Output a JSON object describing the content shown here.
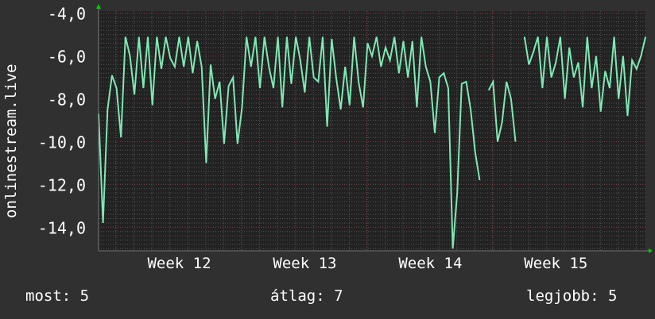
{
  "chart_data": {
    "type": "line",
    "title": "",
    "ylabel": "onlinestream.live",
    "xlabel": "",
    "ylim": [
      -15.1,
      -3.9
    ],
    "y_ticks": [
      "-4,0",
      "-6,0",
      "-8,0",
      "-10,0",
      "-12,0",
      "-14,0"
    ],
    "y_tick_values": [
      -4,
      -6,
      -8,
      -10,
      -12,
      -14
    ],
    "x_ticks": [
      {
        "label": "Week 12",
        "index": 18
      },
      {
        "label": "Week 13",
        "index": 46
      },
      {
        "label": "Week 14",
        "index": 74
      },
      {
        "label": "Week 15",
        "index": 102
      }
    ],
    "grid": true,
    "line_color": "#7ee8b4",
    "values": [
      -8.7,
      -13.8,
      -8.5,
      -6.9,
      -7.5,
      -9.8,
      -5.1,
      -6,
      -7.8,
      -5.1,
      -7.5,
      -5.1,
      -8.3,
      -5.1,
      -6.6,
      -5.1,
      -6.1,
      -6.5,
      -5.1,
      -6.5,
      -5.1,
      -6.8,
      -5.3,
      -6.5,
      -11,
      -6.4,
      -8,
      -7.2,
      -10.1,
      -7.4,
      -7,
      -10.1,
      -8.4,
      -5.1,
      -6.5,
      -5.1,
      -7.5,
      -5.1,
      -6.5,
      -7.5,
      -5.1,
      -8.4,
      -5.1,
      -7.3,
      -5.1,
      -6.2,
      -7.7,
      -5.1,
      -7,
      -7.2,
      -5.1,
      -9.3,
      -5.2,
      -7,
      -8.5,
      -6.5,
      -8.3,
      -5.1,
      -7.2,
      -8.4,
      -5.4,
      -6,
      -5.1,
      -6.5,
      -5.6,
      -6.2,
      -5.1,
      -6.8,
      -5.3,
      -7,
      -5.3,
      -8.4,
      -5.1,
      -6.5,
      -7.2,
      -9.6,
      -7,
      -6.8,
      -7.5,
      -15,
      -12.4,
      -7.3,
      -7.2,
      -8.5,
      -10.5,
      -11.8,
      null,
      -7.6,
      -7.2,
      -10,
      -9.1,
      -7.2,
      -8,
      -10,
      null,
      -5.1,
      -6.4,
      -5.8,
      -5.1,
      -7.5,
      -5.1,
      -7,
      -6.3,
      -5.1,
      -8,
      -5.6,
      -7,
      -6.3,
      -8.4,
      -5.1,
      -7.5,
      -6,
      -8.6,
      -6.7,
      -7.5,
      -5.1,
      -8,
      -6,
      -8.8,
      -6.2,
      -6.6,
      -6,
      -5.1
    ]
  },
  "footer": {
    "current": "most: 5",
    "average": "átlag: 7",
    "best": "legjobb: 5"
  }
}
